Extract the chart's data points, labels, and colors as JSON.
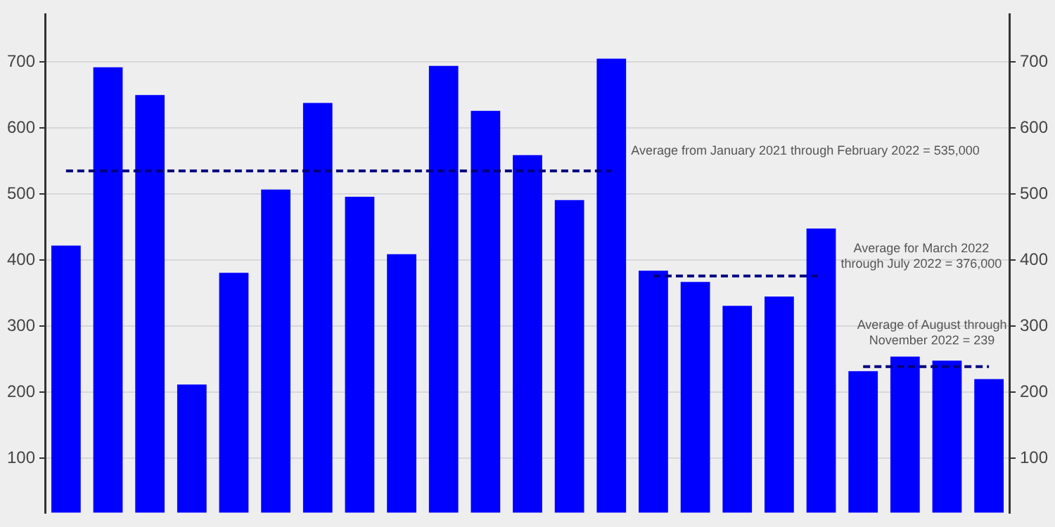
{
  "chart_data": {
    "type": "bar",
    "categories": [
      null,
      null,
      null,
      null,
      null,
      null,
      null,
      null,
      null,
      null,
      null,
      null,
      null,
      null,
      null,
      null,
      null,
      null,
      null,
      null,
      null,
      null,
      null
    ],
    "series": [
      {
        "color": "#0000ff",
        "values": [
          422,
          692,
          650,
          212,
          381,
          507,
          638,
          496,
          409,
          694,
          626,
          559,
          491,
          705,
          384,
          367,
          331,
          345,
          448,
          232,
          254,
          248,
          220
        ]
      },
      {
        "type": "line",
        "color": "#000080",
        "line_style": "dashed",
        "values": [
          535,
          535,
          535,
          535,
          535,
          535,
          535,
          535,
          535,
          535,
          535,
          535,
          535,
          535,
          null,
          null,
          null,
          null,
          null,
          null,
          null,
          null,
          null
        ]
      },
      {
        "type": "line",
        "color": "#000080",
        "line_style": "dashed",
        "values": [
          null,
          null,
          null,
          null,
          null,
          null,
          null,
          null,
          null,
          null,
          null,
          null,
          null,
          null,
          376,
          376,
          376,
          376,
          376,
          null,
          null,
          null,
          null
        ]
      },
      {
        "type": "line",
        "color": "#000080",
        "line_style": "dashed",
        "values": [
          null,
          null,
          null,
          null,
          null,
          null,
          null,
          null,
          null,
          null,
          null,
          null,
          null,
          null,
          null,
          null,
          null,
          null,
          null,
          239,
          239,
          239,
          239
        ]
      }
    ],
    "annotations": [
      "Average from January 2021 through February 2022 = 535,000",
      "Average for March 2022 through July 2022 = 376,000",
      "Average of August through November 2022 = 239"
    ],
    "ylim": [
      18,
      772
    ],
    "yticks": [
      100,
      200,
      300,
      400,
      500,
      600,
      700
    ],
    "y2lim": [
      18,
      772
    ],
    "y2ticks": [
      100,
      200,
      300,
      400,
      500,
      600,
      700
    ],
    "grid": "y",
    "legend": false
  }
}
